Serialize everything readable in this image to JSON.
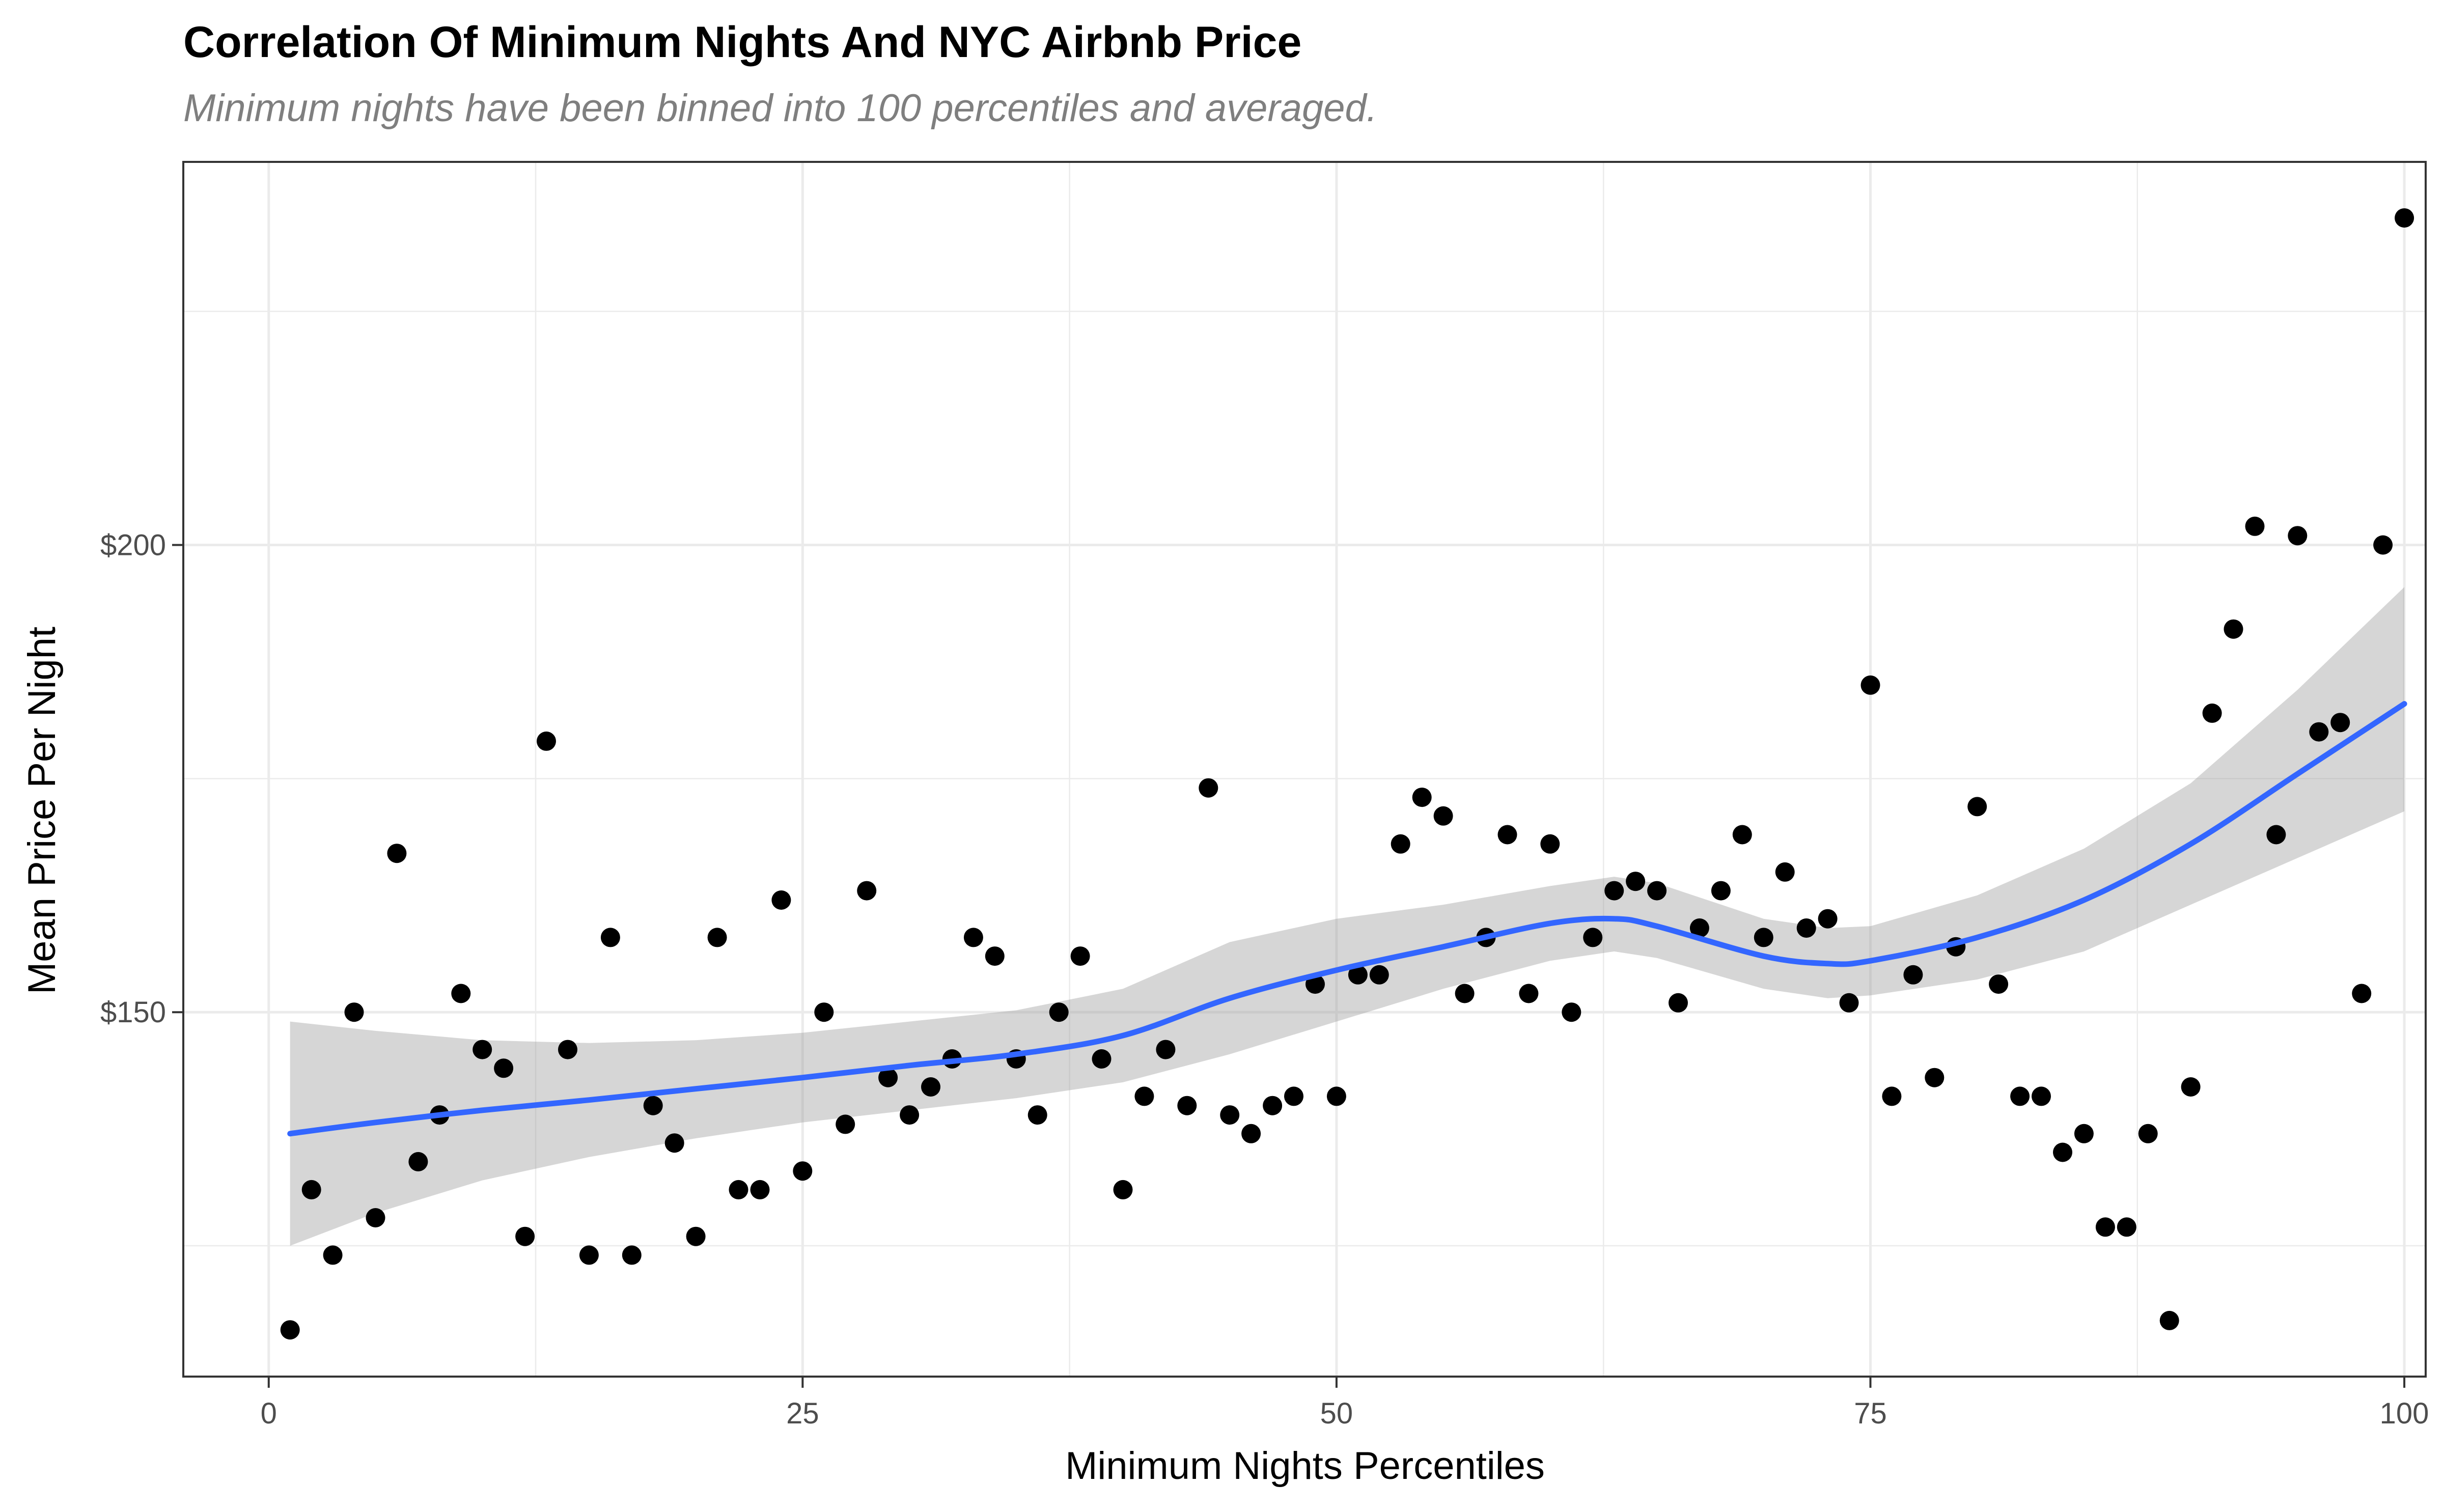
{
  "chart_data": {
    "type": "scatter",
    "title": "Correlation Of Minimum Nights And NYC Airbnb Price",
    "subtitle": "Minimum nights have been binned into 100 percentiles and averaged.",
    "xlabel": "Minimum Nights Percentiles",
    "ylabel": "Mean Price Per Night",
    "xlim": [
      -4,
      101
    ],
    "ylim": [
      111,
      241
    ],
    "x_ticks": [
      0,
      25,
      50,
      75,
      100
    ],
    "x_tick_labels": [
      "0",
      "25",
      "50",
      "75",
      "100"
    ],
    "y_ticks": [
      150,
      200
    ],
    "y_tick_labels": [
      "$150",
      "$200"
    ],
    "grid": true,
    "colors": {
      "points": "#000000",
      "smooth_line": "#3366ff",
      "confidence_band": "#999999",
      "grid": "#ebebeb",
      "panel_border": "#333333"
    },
    "points": [
      {
        "x": 1,
        "y": 116
      },
      {
        "x": 2,
        "y": 131
      },
      {
        "x": 3,
        "y": 124
      },
      {
        "x": 4,
        "y": 150
      },
      {
        "x": 5,
        "y": 128
      },
      {
        "x": 6,
        "y": 167
      },
      {
        "x": 7,
        "y": 134
      },
      {
        "x": 8,
        "y": 139
      },
      {
        "x": 9,
        "y": 152
      },
      {
        "x": 10,
        "y": 146
      },
      {
        "x": 11,
        "y": 144
      },
      {
        "x": 12,
        "y": 126
      },
      {
        "x": 13,
        "y": 179
      },
      {
        "x": 14,
        "y": 146
      },
      {
        "x": 15,
        "y": 124
      },
      {
        "x": 16,
        "y": 158
      },
      {
        "x": 17,
        "y": 124
      },
      {
        "x": 18,
        "y": 140
      },
      {
        "x": 19,
        "y": 136
      },
      {
        "x": 20,
        "y": 126
      },
      {
        "x": 21,
        "y": 158
      },
      {
        "x": 22,
        "y": 131
      },
      {
        "x": 23,
        "y": 131
      },
      {
        "x": 24,
        "y": 162
      },
      {
        "x": 25,
        "y": 133
      },
      {
        "x": 26,
        "y": 150
      },
      {
        "x": 27,
        "y": 138
      },
      {
        "x": 28,
        "y": 163
      },
      {
        "x": 29,
        "y": 143
      },
      {
        "x": 30,
        "y": 139
      },
      {
        "x": 31,
        "y": 142
      },
      {
        "x": 32,
        "y": 145
      },
      {
        "x": 33,
        "y": 158
      },
      {
        "x": 34,
        "y": 156
      },
      {
        "x": 35,
        "y": 145
      },
      {
        "x": 36,
        "y": 139
      },
      {
        "x": 37,
        "y": 150
      },
      {
        "x": 38,
        "y": 156
      },
      {
        "x": 39,
        "y": 145
      },
      {
        "x": 40,
        "y": 131
      },
      {
        "x": 41,
        "y": 141
      },
      {
        "x": 42,
        "y": 146
      },
      {
        "x": 43,
        "y": 140
      },
      {
        "x": 44,
        "y": 174
      },
      {
        "x": 45,
        "y": 139
      },
      {
        "x": 46,
        "y": 137
      },
      {
        "x": 47,
        "y": 140
      },
      {
        "x": 48,
        "y": 141
      },
      {
        "x": 49,
        "y": 153
      },
      {
        "x": 50,
        "y": 141
      },
      {
        "x": 51,
        "y": 154
      },
      {
        "x": 52,
        "y": 154
      },
      {
        "x": 53,
        "y": 168
      },
      {
        "x": 54,
        "y": 173
      },
      {
        "x": 55,
        "y": 171
      },
      {
        "x": 56,
        "y": 152
      },
      {
        "x": 57,
        "y": 158
      },
      {
        "x": 58,
        "y": 169
      },
      {
        "x": 59,
        "y": 152
      },
      {
        "x": 60,
        "y": 168
      },
      {
        "x": 61,
        "y": 150
      },
      {
        "x": 62,
        "y": 158
      },
      {
        "x": 63,
        "y": 163
      },
      {
        "x": 64,
        "y": 164
      },
      {
        "x": 65,
        "y": 163
      },
      {
        "x": 66,
        "y": 151
      },
      {
        "x": 67,
        "y": 159
      },
      {
        "x": 68,
        "y": 163
      },
      {
        "x": 69,
        "y": 169
      },
      {
        "x": 70,
        "y": 158
      },
      {
        "x": 71,
        "y": 165
      },
      {
        "x": 72,
        "y": 159
      },
      {
        "x": 73,
        "y": 160
      },
      {
        "x": 74,
        "y": 151
      },
      {
        "x": 75,
        "y": 185
      },
      {
        "x": 76,
        "y": 141
      },
      {
        "x": 77,
        "y": 154
      },
      {
        "x": 78,
        "y": 143
      },
      {
        "x": 79,
        "y": 157
      },
      {
        "x": 80,
        "y": 172
      },
      {
        "x": 81,
        "y": 153
      },
      {
        "x": 82,
        "y": 141
      },
      {
        "x": 83,
        "y": 141
      },
      {
        "x": 84,
        "y": 135
      },
      {
        "x": 85,
        "y": 137
      },
      {
        "x": 86,
        "y": 127
      },
      {
        "x": 87,
        "y": 127
      },
      {
        "x": 88,
        "y": 137
      },
      {
        "x": 89,
        "y": 117
      },
      {
        "x": 90,
        "y": 142
      },
      {
        "x": 91,
        "y": 182
      },
      {
        "x": 92,
        "y": 191
      },
      {
        "x": 93,
        "y": 202
      },
      {
        "x": 94,
        "y": 169
      },
      {
        "x": 95,
        "y": 201
      },
      {
        "x": 96,
        "y": 180
      },
      {
        "x": 97,
        "y": 181
      },
      {
        "x": 98,
        "y": 152
      },
      {
        "x": 99,
        "y": 200
      },
      {
        "x": 100,
        "y": 235
      }
    ],
    "smooth": {
      "method": "loess",
      "x": [
        1,
        5,
        10,
        15,
        20,
        25,
        30,
        35,
        40,
        45,
        50,
        55,
        60,
        63,
        65,
        70,
        73,
        75,
        80,
        85,
        90,
        95,
        100
      ],
      "y": [
        137,
        138.2,
        139.5,
        140.6,
        141.8,
        143,
        144.3,
        145.5,
        147.5,
        151.5,
        154.5,
        157,
        159.5,
        160,
        159.2,
        156,
        155.2,
        155.5,
        158,
        162,
        168,
        175.5,
        183
      ],
      "lower": [
        125,
        128.5,
        132,
        134.5,
        136.5,
        138.2,
        139.5,
        140.8,
        142.5,
        145.5,
        149,
        152.5,
        155.5,
        156.5,
        155.8,
        152.5,
        151.5,
        151.8,
        153.5,
        156.5,
        161.5,
        166.5,
        171.5
      ],
      "upper": [
        149,
        148,
        147,
        146.7,
        147,
        147.8,
        149,
        150.2,
        152.5,
        157.5,
        160,
        161.5,
        163.5,
        164.5,
        163.8,
        160,
        159,
        159.2,
        162.5,
        167.5,
        174.5,
        184.5,
        195.5
      ]
    }
  }
}
